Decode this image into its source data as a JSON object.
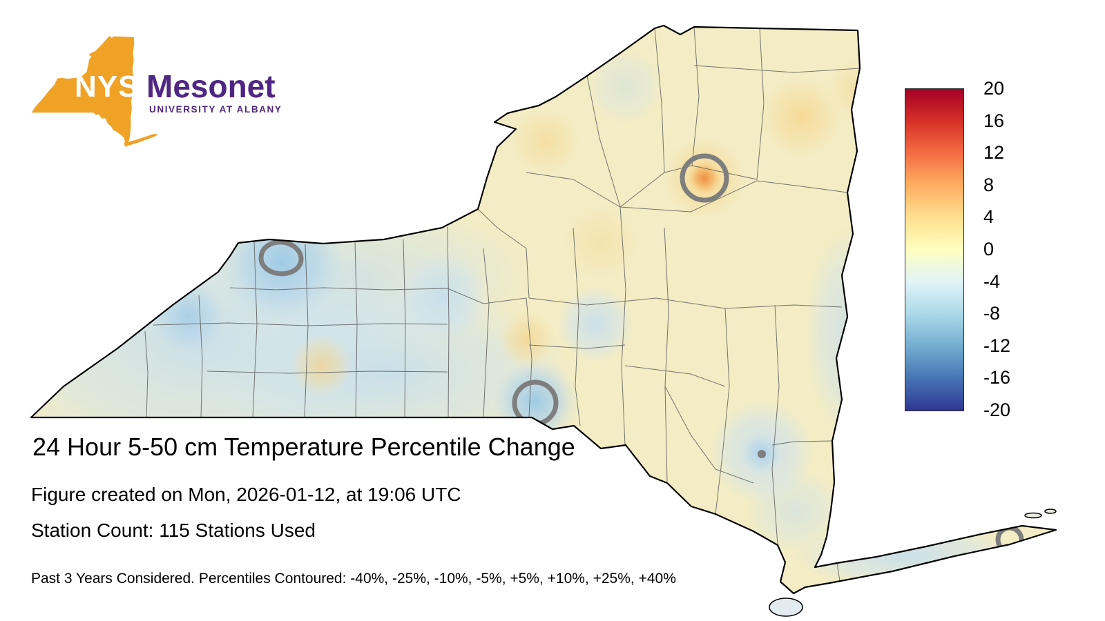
{
  "logo": {
    "acronym": "NYS",
    "brand": "Mesonet",
    "subtitle": "UNIVERSITY AT ALBANY",
    "gold": "#EFA226",
    "purple": "#4F2683"
  },
  "title": "24 Hour 5-50 cm Temperature Percentile Change",
  "created_line": "Figure created on Mon, 2026-01-12, at 19:06 UTC",
  "station_line": "Station Count: 115 Stations Used",
  "footnote": "Past 3 Years Considered. Percentiles Contoured: -40%, -25%, -10%, -5%, +5%, +10%, +25%, +40%",
  "colorbar": {
    "min": -20,
    "max": 20,
    "ticks": [
      "20",
      "16",
      "12",
      "8",
      "4",
      "0",
      "-4",
      "-8",
      "-12",
      "-16",
      "-20"
    ],
    "colors_top_to_bottom": [
      "#a50026",
      "#d73027",
      "#f46d43",
      "#fdae61",
      "#fee090",
      "#ffffbf",
      "#e0f3f8",
      "#abd9e9",
      "#74add1",
      "#4575b4",
      "#313695"
    ]
  },
  "map": {
    "region": "New York State",
    "field_base_color": "#F3ECC4",
    "contour_color": "#7e7e7e",
    "contour_features": [
      "ring-north-adirondacks",
      "ring-west-rochester-area",
      "ring-southern-tier",
      "dot-catskills",
      "arc-long-island"
    ]
  }
}
